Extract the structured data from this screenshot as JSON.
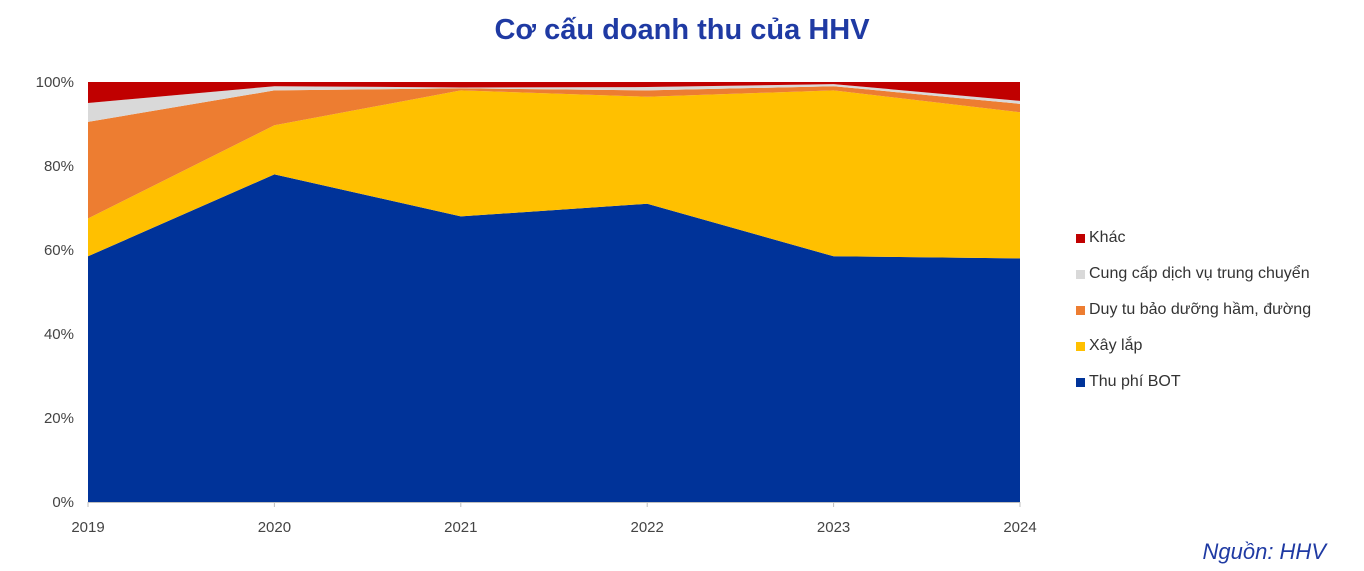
{
  "chart_data": {
    "type": "area",
    "stacked": "percent",
    "title": "Cơ cấu doanh thu của HHV",
    "x": [
      "2019",
      "2020",
      "2021",
      "2022",
      "2023",
      "2024"
    ],
    "ylim": [
      0,
      100
    ],
    "y_ticks": [
      "0%",
      "20%",
      "40%",
      "60%",
      "80%",
      "100%"
    ],
    "grid": false,
    "legend_position": "right",
    "series": [
      {
        "name": "Thu phí BOT",
        "color": "#003399",
        "values": [
          58.5,
          78.0,
          68.0,
          71.0,
          58.5,
          58.0
        ]
      },
      {
        "name": "Xây lắp",
        "color": "#ffc000",
        "values": [
          9.0,
          11.7,
          30.0,
          25.5,
          39.5,
          34.8
        ]
      },
      {
        "name": "Duy tu bảo dưỡng hầm, đường",
        "color": "#ed7d31",
        "values": [
          23.0,
          8.3,
          0.5,
          1.5,
          1.0,
          2.0
        ]
      },
      {
        "name": "Cung cấp dịch vụ trung chuyển",
        "color": "#d9d9d9",
        "values": [
          4.5,
          1.0,
          0.2,
          0.8,
          0.5,
          0.7
        ]
      },
      {
        "name": "Khác",
        "color": "#c00000",
        "values": [
          5.0,
          1.0,
          1.3,
          1.2,
          0.5,
          4.5
        ]
      }
    ],
    "legend_order": [
      "Khác",
      "Cung cấp dịch vụ trung chuyển",
      "Duy tu bảo dưỡng hầm, đường",
      "Xây lắp",
      "Thu phí BOT"
    ]
  },
  "source_note": "Nguồn: HHV"
}
